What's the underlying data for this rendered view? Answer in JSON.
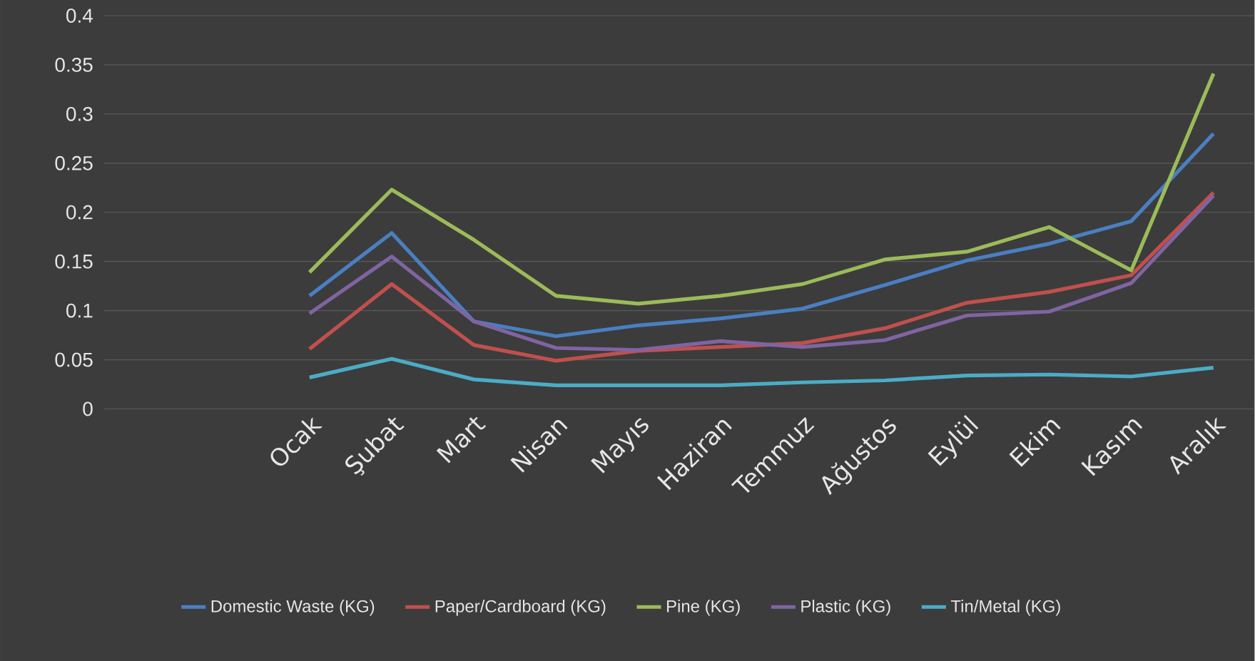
{
  "chart_data": {
    "type": "line",
    "categories": [
      "Ocak",
      "Şubat",
      "Mart",
      "Nisan",
      "Mayıs",
      "Haziran",
      "Temmuz",
      "Ağustos",
      "Eylül",
      "Ekim",
      "Kasım",
      "Aralık"
    ],
    "series": [
      {
        "name": "Domestic Waste (KG)",
        "color": "#4a7fc1",
        "values": [
          0.115,
          0.179,
          0.089,
          0.074,
          0.085,
          0.092,
          0.102,
          0.126,
          0.151,
          0.168,
          0.191,
          0.28
        ]
      },
      {
        "name": "Paper/Cardboard (KG)",
        "color": "#c0504d",
        "values": [
          0.061,
          0.127,
          0.065,
          0.049,
          0.059,
          0.063,
          0.067,
          0.082,
          0.108,
          0.119,
          0.136,
          0.22
        ]
      },
      {
        "name": "Pine (KG)",
        "color": "#9bbb59",
        "values": [
          0.139,
          0.223,
          0.172,
          0.115,
          0.107,
          0.115,
          0.127,
          0.152,
          0.16,
          0.185,
          0.141,
          0.341
        ]
      },
      {
        "name": "Plastic (KG)",
        "color": "#8064a2",
        "values": [
          0.097,
          0.155,
          0.089,
          0.062,
          0.06,
          0.069,
          0.063,
          0.07,
          0.095,
          0.099,
          0.128,
          0.217
        ]
      },
      {
        "name": "Tin/Metal (KG)",
        "color": "#4bacc6",
        "values": [
          0.032,
          0.051,
          0.03,
          0.024,
          0.024,
          0.024,
          0.027,
          0.029,
          0.034,
          0.035,
          0.033,
          0.042
        ]
      }
    ],
    "ylim": [
      0,
      0.4
    ],
    "yticks": [
      0,
      0.05,
      0.1,
      0.15,
      0.2,
      0.25,
      0.3,
      0.35,
      0.4
    ],
    "grid": "y",
    "legend": "bottom",
    "marker": "none",
    "line_style": "solid"
  }
}
